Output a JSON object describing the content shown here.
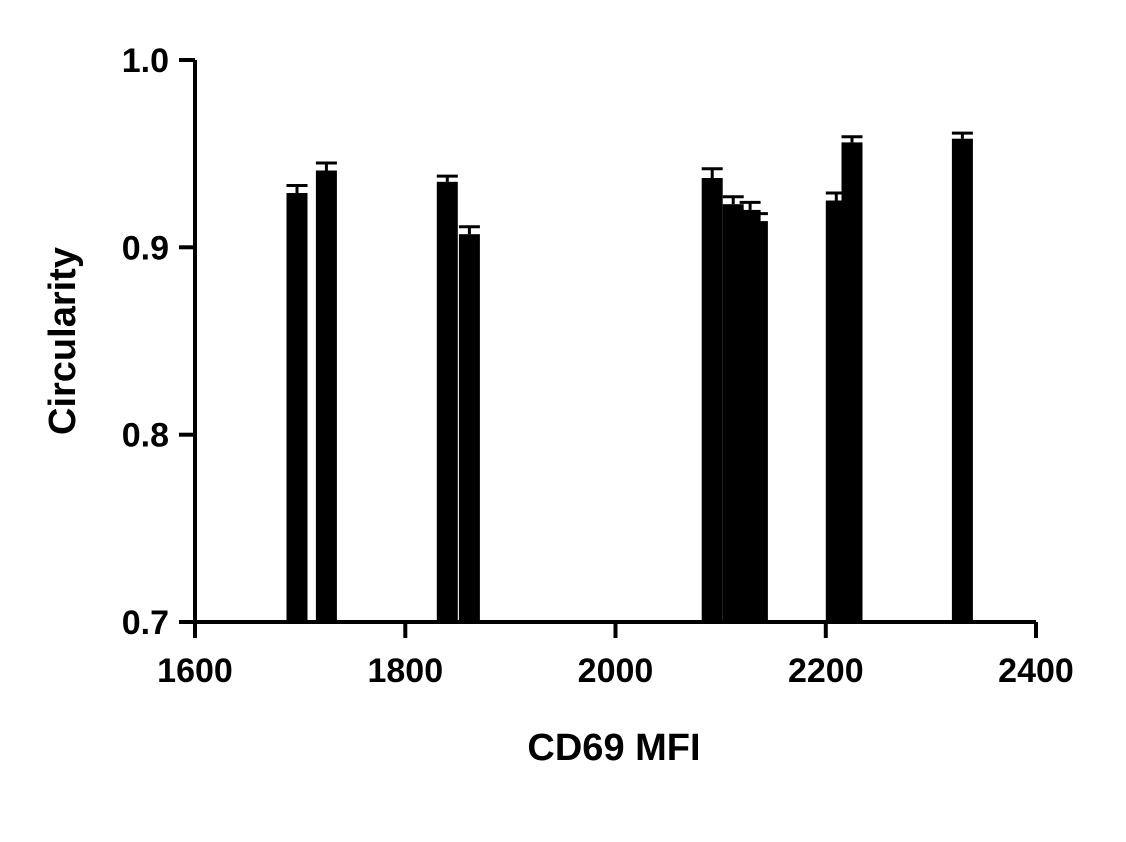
{
  "chart_data": {
    "type": "bar",
    "xlabel": "CD69 MFI",
    "ylabel": "Circularity",
    "xlim": [
      1600,
      2400
    ],
    "ylim": [
      0.7,
      1.0
    ],
    "x_ticks": [
      "1600",
      "1800",
      "2000",
      "2200",
      "2400"
    ],
    "y_ticks": [
      "0.7",
      "0.8",
      "0.9",
      "1.0"
    ],
    "grid": false,
    "bar_color": "#000000",
    "points": [
      {
        "x": 1697,
        "y": 0.929,
        "err": 0.004
      },
      {
        "x": 1725,
        "y": 0.941,
        "err": 0.004
      },
      {
        "x": 1840,
        "y": 0.935,
        "err": 0.003
      },
      {
        "x": 1861,
        "y": 0.907,
        "err": 0.004
      },
      {
        "x": 2092,
        "y": 0.937,
        "err": 0.005
      },
      {
        "x": 2112,
        "y": 0.923,
        "err": 0.004
      },
      {
        "x": 2128,
        "y": 0.92,
        "err": 0.004
      },
      {
        "x": 2135,
        "y": 0.914,
        "err": 0.004
      },
      {
        "x": 2210,
        "y": 0.925,
        "err": 0.004
      },
      {
        "x": 2225,
        "y": 0.956,
        "err": 0.003
      },
      {
        "x": 2330,
        "y": 0.958,
        "err": 0.003
      }
    ]
  }
}
